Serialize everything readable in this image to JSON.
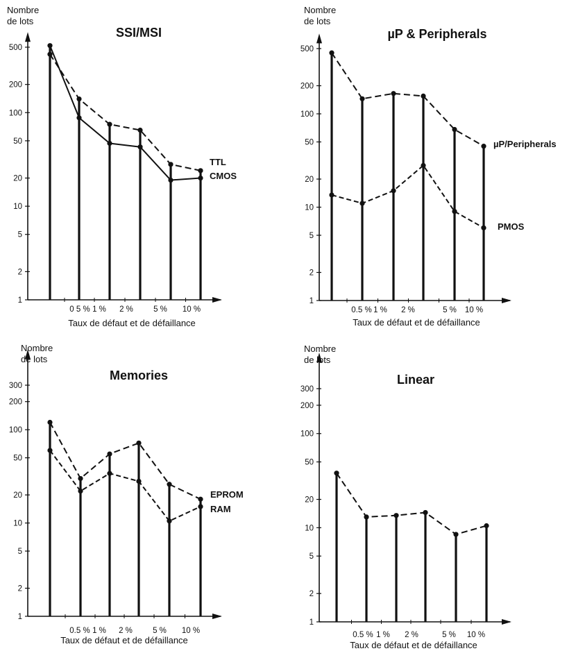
{
  "figure": {
    "y_axis_label_line1": "Nombre",
    "y_axis_label_line2": "de lots",
    "x_axis_label": "Taux de défaut et de défaillance"
  },
  "chart_data": [
    {
      "type": "line",
      "title": "SSI/MSI",
      "ylabel": "Nombre de lots",
      "xlabel": "Taux de défaut et de défaillance",
      "x_tick_labels": [
        "0 5 %",
        "1 %",
        "2 %",
        "5 %",
        "10 %"
      ],
      "y_ticks": [
        1,
        2,
        5,
        10,
        20,
        50,
        100,
        200,
        500
      ],
      "y_scale": "log",
      "ylim": [
        1,
        700
      ],
      "x": [
        1,
        2,
        3,
        4,
        5,
        6
      ],
      "series": [
        {
          "name": "TTL",
          "values": [
            420,
            140,
            75,
            65,
            28,
            24
          ],
          "style": "dashed"
        },
        {
          "name": "CMOS",
          "values": [
            520,
            88,
            47,
            43,
            19,
            20
          ],
          "style": "solid"
        }
      ]
    },
    {
      "type": "line",
      "title": "µP & Peripherals",
      "ylabel": "Nombre de lots",
      "xlabel": "Taux de défaut et de défaillance",
      "x_tick_labels": [
        "0.5 %",
        "1 %",
        "2 %",
        "5 %",
        "10 %"
      ],
      "y_ticks": [
        1,
        2,
        5,
        10,
        20,
        50,
        100,
        200,
        500
      ],
      "y_scale": "log",
      "ylim": [
        1,
        700
      ],
      "x": [
        1,
        2,
        3,
        4,
        5,
        6
      ],
      "series": [
        {
          "name": "µP/Peripherals",
          "values": [
            450,
            145,
            165,
            155,
            68,
            45
          ],
          "style": "dashed"
        },
        {
          "name": "PMOS",
          "values": [
            13.5,
            11,
            15,
            28,
            9,
            6
          ],
          "style": "dashed"
        }
      ]
    },
    {
      "type": "line",
      "title": "Memories",
      "ylabel": "Nombre de lots",
      "xlabel": "Taux de défaut et de défaillance",
      "x_tick_labels": [
        "0.5 %",
        "1 %",
        "2 %",
        "5 %",
        "10 %"
      ],
      "y_ticks": [
        1,
        2,
        5,
        10,
        20,
        50,
        100,
        200,
        300
      ],
      "y_scale": "log",
      "ylim": [
        1,
        700
      ],
      "x": [
        1,
        2,
        3,
        4,
        5,
        6
      ],
      "series": [
        {
          "name": "EPROM",
          "values": [
            120,
            30,
            55,
            72,
            26,
            18
          ],
          "style": "dashed"
        },
        {
          "name": "RAM",
          "values": [
            60,
            22,
            34,
            28,
            10.5,
            15
          ],
          "style": "dashed"
        }
      ]
    },
    {
      "type": "line",
      "title": "Linear",
      "ylabel": "Nombre de lots",
      "xlabel": "Taux de défaut et de défaillance",
      "x_tick_labels": [
        "0.5 %",
        "1 %",
        "2 %",
        "5 %",
        "10 %"
      ],
      "y_ticks": [
        1,
        2,
        5,
        10,
        20,
        50,
        100,
        200,
        300
      ],
      "y_scale": "log",
      "ylim": [
        1,
        700
      ],
      "x": [
        1,
        2,
        3,
        4,
        5,
        6
      ],
      "series": [
        {
          "name": "",
          "values": [
            38,
            13,
            13.5,
            14.5,
            8.5,
            10.5
          ],
          "style": "dashed"
        }
      ]
    }
  ]
}
